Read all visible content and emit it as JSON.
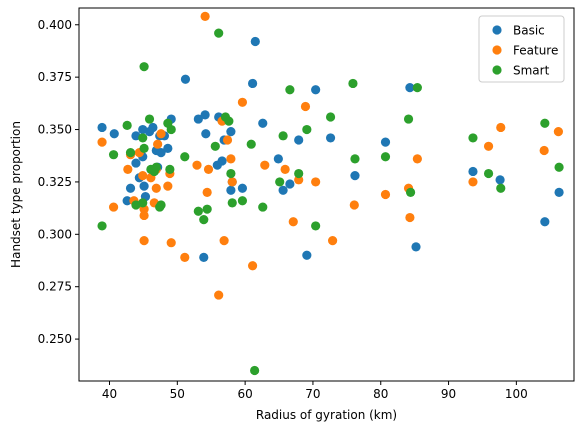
{
  "chart_data": {
    "type": "scatter",
    "title": "",
    "xlabel": "Radius of gyration (km)",
    "ylabel": "Handset type proportion",
    "xlim": [
      35.5,
      108.5
    ],
    "ylim": [
      0.23,
      0.408
    ],
    "xticks": [
      40,
      50,
      60,
      70,
      80,
      90,
      100
    ],
    "yticks": [
      0.25,
      0.275,
      0.3,
      0.325,
      0.35,
      0.375,
      0.4
    ],
    "legend_position": "top-right",
    "grid": false,
    "series": [
      {
        "name": "Basic",
        "color": "#1f77b4",
        "points": [
          [
            38.9,
            0.351
          ],
          [
            40.7,
            0.348
          ],
          [
            42.6,
            0.316
          ],
          [
            43.1,
            0.322
          ],
          [
            43.9,
            0.347
          ],
          [
            43.9,
            0.334
          ],
          [
            44.4,
            0.327
          ],
          [
            44.9,
            0.337
          ],
          [
            44.9,
            0.35
          ],
          [
            45.1,
            0.323
          ],
          [
            45.3,
            0.318
          ],
          [
            45.9,
            0.349
          ],
          [
            46.4,
            0.351
          ],
          [
            46.9,
            0.34
          ],
          [
            47.1,
            0.332
          ],
          [
            47.4,
            0.347
          ],
          [
            47.6,
            0.339
          ],
          [
            48.1,
            0.347
          ],
          [
            48.6,
            0.341
          ],
          [
            49.1,
            0.355
          ],
          [
            51.2,
            0.374
          ],
          [
            53.1,
            0.355
          ],
          [
            53.9,
            0.289
          ],
          [
            54.2,
            0.348
          ],
          [
            54.1,
            0.357
          ],
          [
            55.9,
            0.333
          ],
          [
            56.1,
            0.356
          ],
          [
            56.6,
            0.335
          ],
          [
            56.9,
            0.345
          ],
          [
            57.9,
            0.349
          ],
          [
            57.9,
            0.321
          ],
          [
            58.1,
            0.325
          ],
          [
            59.6,
            0.322
          ],
          [
            61.1,
            0.372
          ],
          [
            61.5,
            0.392
          ],
          [
            62.6,
            0.353
          ],
          [
            64.9,
            0.336
          ],
          [
            65.6,
            0.321
          ],
          [
            66.6,
            0.324
          ],
          [
            67.9,
            0.345
          ],
          [
            69.1,
            0.29
          ],
          [
            70.4,
            0.369
          ],
          [
            72.6,
            0.346
          ],
          [
            76.2,
            0.328
          ],
          [
            80.7,
            0.344
          ],
          [
            84.3,
            0.37
          ],
          [
            85.2,
            0.294
          ],
          [
            93.6,
            0.33
          ],
          [
            97.6,
            0.326
          ],
          [
            104.2,
            0.306
          ],
          [
            106.3,
            0.32
          ]
        ]
      },
      {
        "name": "Feature",
        "color": "#ff7f0e",
        "points": [
          [
            38.9,
            0.344
          ],
          [
            40.6,
            0.313
          ],
          [
            42.7,
            0.331
          ],
          [
            43.1,
            0.338
          ],
          [
            43.6,
            0.316
          ],
          [
            44.4,
            0.339
          ],
          [
            44.9,
            0.328
          ],
          [
            45.1,
            0.297
          ],
          [
            45.1,
            0.312
          ],
          [
            45.1,
            0.309
          ],
          [
            46.1,
            0.327
          ],
          [
            46.6,
            0.315
          ],
          [
            46.9,
            0.322
          ],
          [
            46.9,
            0.331
          ],
          [
            47.1,
            0.343
          ],
          [
            47.6,
            0.348
          ],
          [
            48.6,
            0.323
          ],
          [
            48.9,
            0.329
          ],
          [
            49.1,
            0.296
          ],
          [
            51.1,
            0.289
          ],
          [
            52.9,
            0.333
          ],
          [
            54.1,
            0.404
          ],
          [
            54.4,
            0.32
          ],
          [
            54.6,
            0.331
          ],
          [
            56.1,
            0.271
          ],
          [
            56.6,
            0.354
          ],
          [
            56.9,
            0.297
          ],
          [
            57.4,
            0.345
          ],
          [
            57.9,
            0.336
          ],
          [
            58.1,
            0.325
          ],
          [
            59.6,
            0.363
          ],
          [
            61.1,
            0.285
          ],
          [
            62.9,
            0.333
          ],
          [
            65.9,
            0.331
          ],
          [
            67.1,
            0.306
          ],
          [
            67.9,
            0.326
          ],
          [
            68.9,
            0.361
          ],
          [
            70.4,
            0.325
          ],
          [
            72.9,
            0.297
          ],
          [
            76.1,
            0.314
          ],
          [
            80.7,
            0.319
          ],
          [
            84.3,
            0.308
          ],
          [
            85.4,
            0.336
          ],
          [
            84.1,
            0.322
          ],
          [
            93.6,
            0.325
          ],
          [
            95.9,
            0.342
          ],
          [
            97.7,
            0.351
          ],
          [
            104.1,
            0.34
          ],
          [
            106.2,
            0.349
          ]
        ]
      },
      {
        "name": "Smart",
        "color": "#2ca02c",
        "points": [
          [
            38.9,
            0.304
          ],
          [
            40.6,
            0.338
          ],
          [
            42.6,
            0.352
          ],
          [
            43.1,
            0.339
          ],
          [
            43.9,
            0.314
          ],
          [
            44.9,
            0.346
          ],
          [
            44.9,
            0.315
          ],
          [
            45.1,
            0.38
          ],
          [
            45.1,
            0.341
          ],
          [
            45.9,
            0.355
          ],
          [
            46.1,
            0.331
          ],
          [
            46.6,
            0.33
          ],
          [
            46.9,
            0.332
          ],
          [
            47.4,
            0.313
          ],
          [
            47.6,
            0.314
          ],
          [
            48.6,
            0.353
          ],
          [
            48.9,
            0.331
          ],
          [
            49.1,
            0.35
          ],
          [
            51.1,
            0.337
          ],
          [
            53.1,
            0.311
          ],
          [
            53.9,
            0.307
          ],
          [
            54.4,
            0.312
          ],
          [
            55.6,
            0.342
          ],
          [
            56.1,
            0.396
          ],
          [
            57.1,
            0.356
          ],
          [
            57.6,
            0.354
          ],
          [
            57.9,
            0.329
          ],
          [
            58.1,
            0.315
          ],
          [
            59.6,
            0.316
          ],
          [
            60.9,
            0.343
          ],
          [
            61.4,
            0.235
          ],
          [
            62.6,
            0.313
          ],
          [
            65.1,
            0.325
          ],
          [
            65.6,
            0.347
          ],
          [
            66.6,
            0.369
          ],
          [
            67.9,
            0.329
          ],
          [
            69.1,
            0.35
          ],
          [
            70.4,
            0.304
          ],
          [
            72.6,
            0.356
          ],
          [
            75.9,
            0.372
          ],
          [
            76.2,
            0.336
          ],
          [
            80.7,
            0.337
          ],
          [
            84.1,
            0.355
          ],
          [
            84.4,
            0.32
          ],
          [
            85.4,
            0.37
          ],
          [
            93.6,
            0.346
          ],
          [
            95.9,
            0.329
          ],
          [
            97.7,
            0.322
          ],
          [
            104.2,
            0.353
          ],
          [
            106.3,
            0.332
          ]
        ]
      }
    ]
  }
}
